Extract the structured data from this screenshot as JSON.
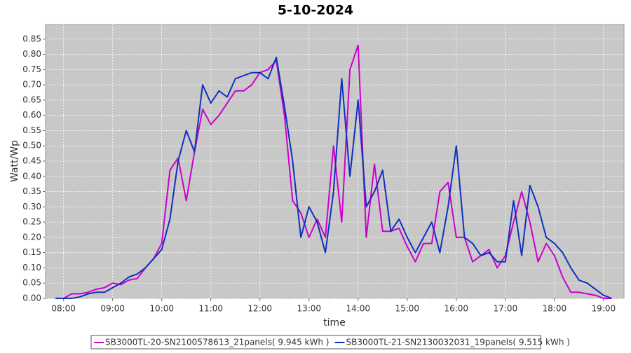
{
  "chart_data": {
    "type": "line",
    "title": "5-10-2024",
    "x_label": "time",
    "y_label": "Watt/Wp",
    "x": [
      470,
      480,
      490,
      500,
      510,
      520,
      530,
      540,
      550,
      560,
      570,
      580,
      590,
      600,
      610,
      620,
      630,
      640,
      650,
      660,
      670,
      680,
      690,
      700,
      710,
      720,
      730,
      740,
      750,
      760,
      770,
      780,
      790,
      800,
      810,
      820,
      830,
      840,
      850,
      860,
      870,
      880,
      890,
      900,
      910,
      920,
      930,
      940,
      950,
      960,
      970,
      980,
      990,
      1000,
      1010,
      1020,
      1030,
      1040,
      1050,
      1060,
      1070,
      1080,
      1090,
      1100,
      1110,
      1120,
      1130,
      1140,
      1150
    ],
    "series": [
      {
        "name": "SB3000TL-20-SN2100578613_21panels( 9.945 kWh )",
        "color": "#cc00cc",
        "values": [
          0,
          0,
          0.015,
          0.015,
          0.02,
          0.03,
          0.035,
          0.05,
          0.045,
          0.06,
          0.065,
          0.1,
          0.13,
          0.18,
          0.42,
          0.46,
          0.32,
          0.48,
          0.62,
          0.57,
          0.6,
          0.64,
          0.68,
          0.68,
          0.7,
          0.74,
          0.75,
          0.78,
          0.6,
          0.32,
          0.28,
          0.2,
          0.26,
          0.2,
          0.5,
          0.25,
          0.75,
          0.83,
          0.2,
          0.44,
          0.22,
          0.22,
          0.23,
          0.17,
          0.12,
          0.18,
          0.18,
          0.35,
          0.38,
          0.2,
          0.2,
          0.12,
          0.14,
          0.16,
          0.1,
          0.14,
          0.25,
          0.35,
          0.25,
          0.12,
          0.18,
          0.14,
          0.07,
          0.02,
          0.02,
          0.015,
          0.01,
          0,
          0
        ]
      },
      {
        "name": "SB3000TL-21-SN2130032031_19panels( 9.515 kWh )",
        "color": "#1030c0",
        "values": [
          0,
          0,
          0,
          0.005,
          0.015,
          0.02,
          0.02,
          0.035,
          0.05,
          0.07,
          0.08,
          0.1,
          0.13,
          0.16,
          0.26,
          0.45,
          0.55,
          0.48,
          0.7,
          0.64,
          0.68,
          0.66,
          0.72,
          0.73,
          0.74,
          0.74,
          0.72,
          0.79,
          0.63,
          0.45,
          0.2,
          0.3,
          0.25,
          0.15,
          0.35,
          0.72,
          0.4,
          0.65,
          0.3,
          0.35,
          0.42,
          0.22,
          0.26,
          0.2,
          0.15,
          0.2,
          0.25,
          0.15,
          0.3,
          0.5,
          0.2,
          0.18,
          0.14,
          0.15,
          0.12,
          0.12,
          0.32,
          0.14,
          0.37,
          0.3,
          0.2,
          0.18,
          0.15,
          0.1,
          0.06,
          0.05,
          0.03,
          0.01,
          0
        ]
      }
    ],
    "xlim": [
      458,
      1165
    ],
    "xticks": [
      {
        "value": 480,
        "label": "08:00"
      },
      {
        "value": 540,
        "label": "09:00"
      },
      {
        "value": 600,
        "label": "10:00"
      },
      {
        "value": 660,
        "label": "11:00"
      },
      {
        "value": 720,
        "label": "12:00"
      },
      {
        "value": 780,
        "label": "13:00"
      },
      {
        "value": 840,
        "label": "14:00"
      },
      {
        "value": 900,
        "label": "15:00"
      },
      {
        "value": 960,
        "label": "16:00"
      },
      {
        "value": 1020,
        "label": "17:00"
      },
      {
        "value": 1080,
        "label": "18:00"
      },
      {
        "value": 1140,
        "label": "19:00"
      }
    ],
    "ylim": [
      0,
      0.9
    ],
    "yticks": [
      {
        "value": 0,
        "label": "0.00"
      },
      0.05,
      {
        "value": 0.1,
        "label": "0.10"
      },
      0.15,
      {
        "value": 0.2,
        "label": "0.20"
      },
      0.25,
      {
        "value": 0.3,
        "label": "0.30"
      },
      0.35,
      {
        "value": 0.4,
        "label": "0.40"
      },
      0.45,
      {
        "value": 0.5,
        "label": "0.50"
      },
      0.55,
      {
        "value": 0.6,
        "label": "0.60"
      },
      0.65,
      {
        "value": 0.7,
        "label": "0.70"
      },
      0.75,
      {
        "value": 0.8,
        "label": "0.80"
      },
      0.85
    ],
    "grid": true,
    "legend": "bottom"
  }
}
